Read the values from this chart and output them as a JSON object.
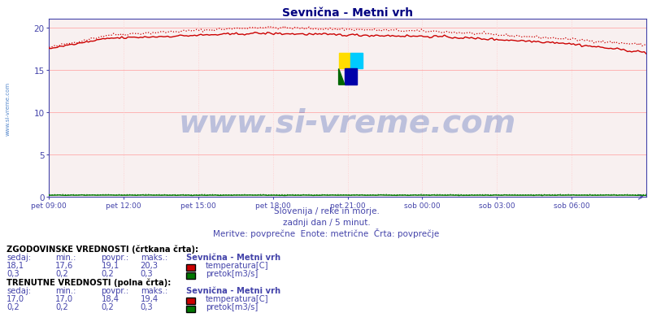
{
  "title": "Sevnična - Metni vrh",
  "subtitle1": "Slovenija / reke in morje.",
  "subtitle2": "zadnji dan / 5 minut.",
  "subtitle3": "Meritve: povprečne  Enote: metrične  Črta: povprečje",
  "watermark": "www.si-vreme.com",
  "bg_color": "#ffffff",
  "plot_bg_color": "#f8f0f0",
  "grid_color_h": "#ffaaaa",
  "grid_color_v": "#ffcccc",
  "xticklabels": [
    "pet 09:00",
    "pet 12:00",
    "pet 15:00",
    "pet 18:00",
    "pet 21:00",
    "sob 00:00",
    "sob 03:00",
    "sob 06:00"
  ],
  "yticks": [
    0,
    5,
    10,
    15,
    20
  ],
  "ylim": [
    0,
    21
  ],
  "temp_color": "#cc0000",
  "flow_color": "#007700",
  "axis_color": "#4444aa",
  "text_color": "#4444aa",
  "title_color": "#000080",
  "sidebar_text": "www.si-vreme.com",
  "hist_label": "ZGODOVINSKE VREDNOSTI (črtkana črta):",
  "curr_label": "TRENUTNE VREDNOSTI (polna črta):",
  "col_headers": [
    "sedaj:",
    "min.:",
    "povpr.:",
    "maks.:"
  ],
  "station_name": "Sevnična - Metni vrh",
  "hist_temp": {
    "sedaj": "18,1",
    "min": "17,6",
    "povpr": "19,1",
    "maks": "20,3"
  },
  "hist_flow": {
    "sedaj": "0,3",
    "min": "0,2",
    "povpr": "0,2",
    "maks": "0,3"
  },
  "curr_temp": {
    "sedaj": "17,0",
    "min": "17,0",
    "povpr": "18,4",
    "maks": "19,4"
  },
  "curr_flow": {
    "sedaj": "0,2",
    "min": "0,2",
    "povpr": "0,2",
    "maks": "0,3"
  },
  "temp_label": "temperatura[C]",
  "flow_label": "pretok[m3/s]",
  "wm_color": "#2244aa",
  "wm_alpha": 0.28,
  "wm_fontsize": 28
}
